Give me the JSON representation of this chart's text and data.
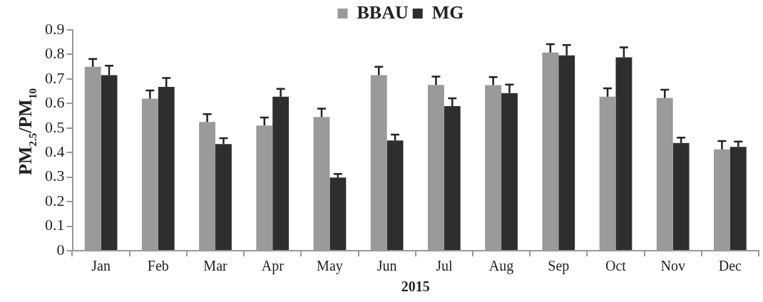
{
  "chart_data": {
    "type": "bar",
    "xlabel": "2015",
    "ylabel": "PM$_{2.5}$/PM$_{10}$",
    "categories": [
      "Jan",
      "Feb",
      "Mar",
      "Apr",
      "May",
      "Jun",
      "Jul",
      "Aug",
      "Sep",
      "Oct",
      "Nov",
      "Dec"
    ],
    "series": [
      {
        "name": "BBAU",
        "color": "#9a9a9a",
        "values": [
          0.75,
          0.62,
          0.525,
          0.51,
          0.545,
          0.716,
          0.676,
          0.675,
          0.808,
          0.628,
          0.623,
          0.413
        ],
        "errors": [
          [
            0.75,
            0.782
          ],
          [
            0.62,
            0.653
          ],
          [
            0.525,
            0.557
          ],
          [
            0.51,
            0.543
          ],
          [
            0.545,
            0.579
          ],
          [
            0.716,
            0.75
          ],
          [
            0.676,
            0.71
          ],
          [
            0.675,
            0.708
          ],
          [
            0.808,
            0.842
          ],
          [
            0.628,
            0.662
          ],
          [
            0.623,
            0.656
          ],
          [
            0.413,
            0.447
          ]
        ]
      },
      {
        "name": "MG",
        "color": "#2e2e2e",
        "values": [
          0.716,
          0.668,
          0.435,
          0.628,
          0.298,
          0.449,
          0.589,
          0.642,
          0.796,
          0.788,
          0.439,
          0.423
        ],
        "errors": [
          [
            0.716,
            0.754
          ],
          [
            0.668,
            0.704
          ],
          [
            0.435,
            0.459
          ],
          [
            0.628,
            0.66
          ],
          [
            0.298,
            0.313
          ],
          [
            0.449,
            0.473
          ],
          [
            0.589,
            0.621
          ],
          [
            0.642,
            0.677
          ],
          [
            0.796,
            0.838
          ],
          [
            0.788,
            0.829
          ],
          [
            0.439,
            0.461
          ],
          [
            0.423,
            0.445
          ]
        ]
      }
    ],
    "ylim": [
      0,
      0.9
    ],
    "yticks": [
      0,
      0.1,
      0.2,
      0.3,
      0.4,
      0.5,
      0.6,
      0.7,
      0.8,
      0.9
    ],
    "grid": false,
    "legend": "top"
  }
}
